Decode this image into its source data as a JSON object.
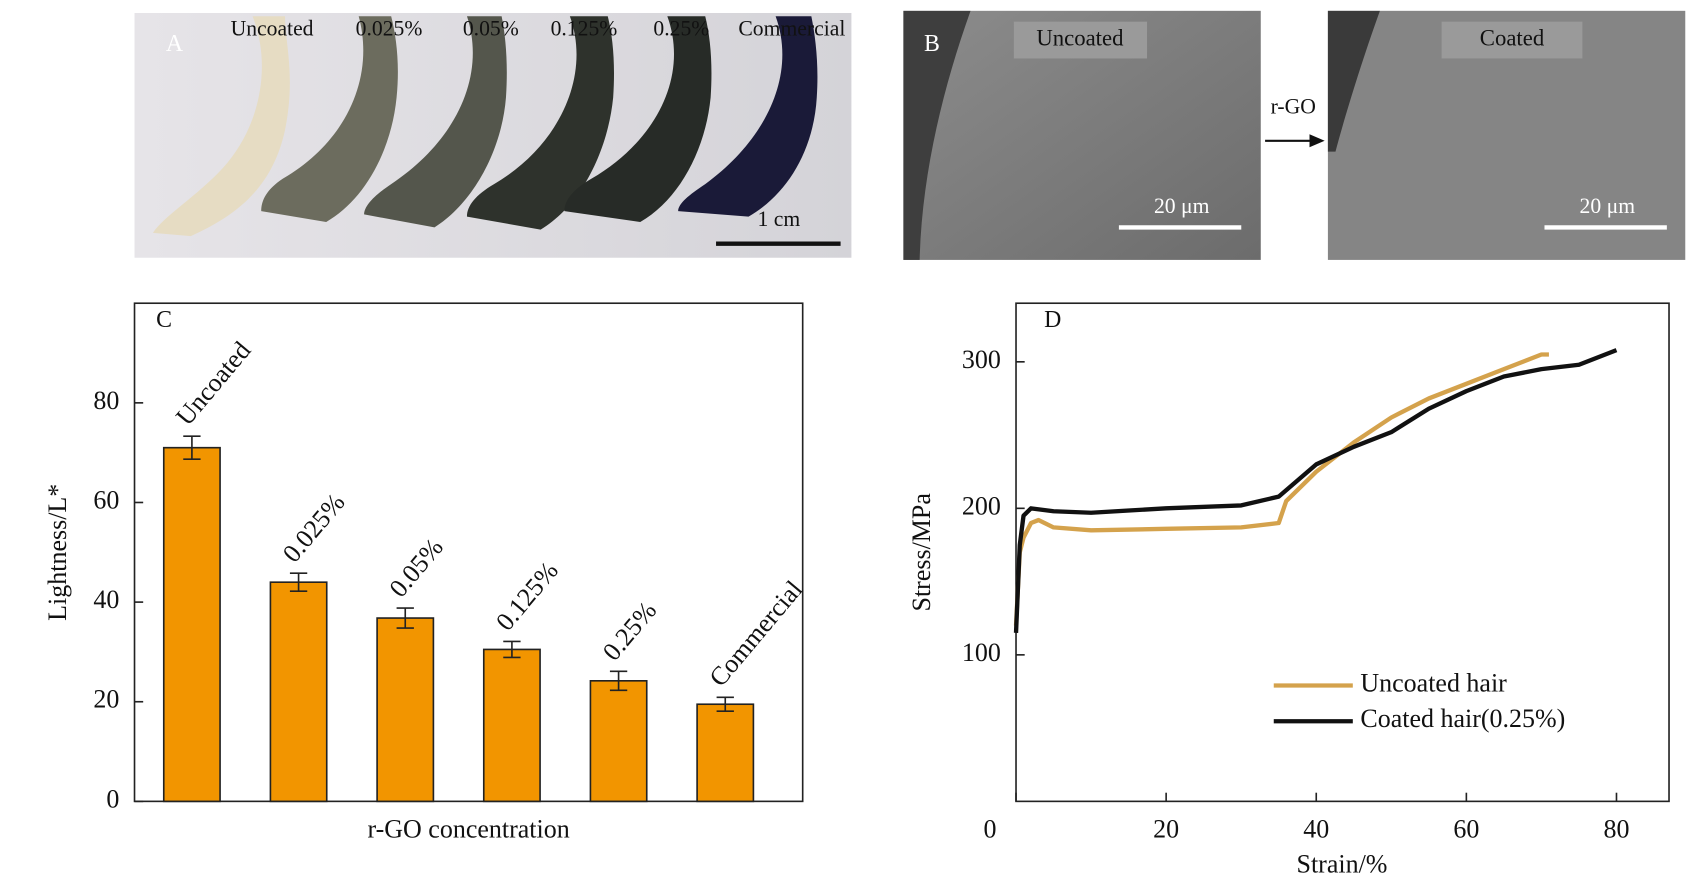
{
  "panel_a": {
    "label": "A",
    "samples": [
      "Uncoated",
      "0.025%",
      "0.05%",
      "0.125%",
      "0.25%",
      "Commercial"
    ],
    "scale_bar": "1 cm"
  },
  "panel_b": {
    "label": "B",
    "left": "Uncoated",
    "right": "Coated",
    "arrow": "r-GO",
    "scale_bars": [
      "20 μm",
      "20 μm"
    ]
  },
  "chart_data": [
    {
      "type": "bar",
      "annotation": "C",
      "xlabel": "r-GO concentration",
      "ylabel": "Lightness/L*",
      "categories": [
        "Uncoated",
        "0.025%",
        "0.05%",
        "0.125%",
        "0.25%",
        "Commercial"
      ],
      "values": [
        71,
        44,
        36.8,
        30.5,
        24.2,
        19.5
      ],
      "errors": [
        2.3,
        1.8,
        2,
        1.6,
        1.9,
        1.4
      ],
      "color": "#f29500",
      "ylim": [
        0,
        100
      ],
      "yticks": [
        0,
        20,
        40,
        60,
        80
      ]
    },
    {
      "type": "line",
      "annotation": "D",
      "xlabel": "Strain/%",
      "ylabel": "Stress/MPa",
      "xlim": [
        0,
        87
      ],
      "xticks": [
        0,
        20,
        40,
        60,
        80
      ],
      "ylim": [
        0,
        340
      ],
      "yticks": [
        100,
        200,
        300
      ],
      "legend": "lower right",
      "series": [
        {
          "name": "Uncoated hair",
          "color": "#d4a24c",
          "x": [
            0,
            0.5,
            1,
            2,
            3,
            5,
            10,
            20,
            30,
            35,
            36,
            40,
            45,
            50,
            55,
            60,
            65,
            70,
            71
          ],
          "values": [
            120,
            170,
            180,
            190,
            192,
            187,
            185,
            186,
            187,
            190,
            205,
            225,
            245,
            262,
            275,
            285,
            295,
            305,
            305
          ]
        },
        {
          "name": "Coated hair(0.25%)",
          "color": "#111111",
          "x": [
            0,
            0.5,
            1,
            2,
            5,
            10,
            20,
            30,
            35,
            40,
            45,
            50,
            55,
            60,
            65,
            70,
            75,
            80
          ],
          "values": [
            115,
            175,
            195,
            200,
            198,
            197,
            200,
            202,
            208,
            230,
            242,
            252,
            268,
            280,
            290,
            295,
            298,
            308
          ]
        }
      ]
    }
  ]
}
